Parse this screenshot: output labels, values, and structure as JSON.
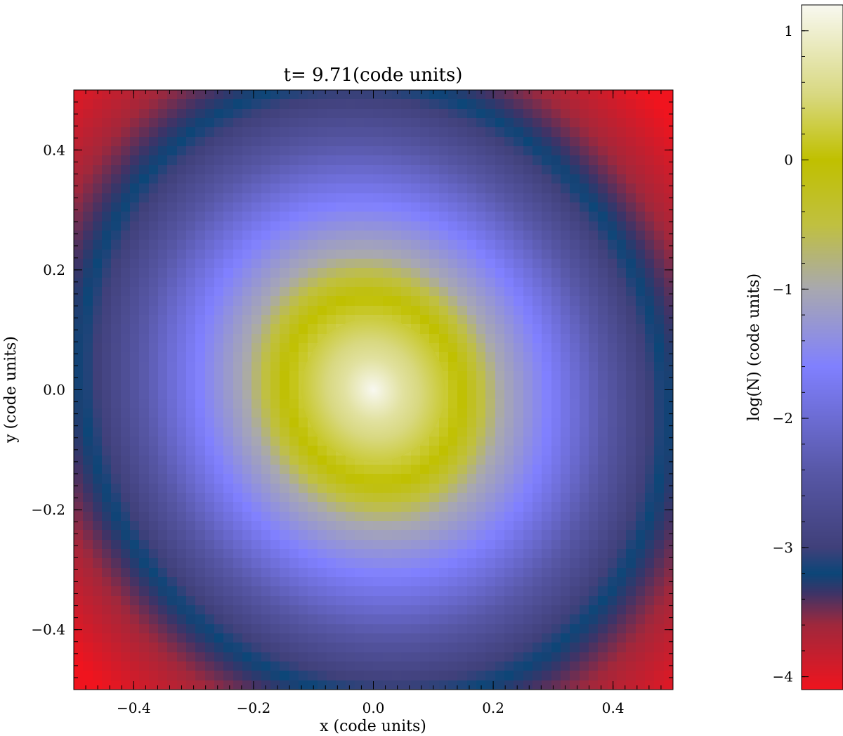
{
  "chart_data": [
    {
      "type": "heatmap",
      "title": "t=  9.71(code units)",
      "xlabel": "x (code units)",
      "ylabel": "y (code units)",
      "xlim": [
        -0.5,
        0.5
      ],
      "ylim": [
        -0.5,
        0.5
      ],
      "xticks": [
        -0.4,
        -0.2,
        0.0,
        0.2,
        0.4
      ],
      "xtick_labels": [
        "−0.4",
        "−0.2",
        "0.0",
        "0.2",
        "0.4"
      ],
      "yticks": [
        -0.4,
        -0.2,
        0.0,
        0.2,
        0.4
      ],
      "ytick_labels": [
        "−0.4",
        "−0.2",
        "0.0",
        "0.2",
        "0.4"
      ],
      "grid": false,
      "field": "log(N)",
      "value_range": [
        -4.1,
        1.2
      ],
      "profile": {
        "description": "radially decreasing log column density centred at origin",
        "center_value": 1.2,
        "radius_value_pairs": [
          [
            0.0,
            1.2
          ],
          [
            0.05,
            0.7
          ],
          [
            0.15,
            0.0
          ],
          [
            0.22,
            -1.0
          ],
          [
            0.3,
            -1.6
          ],
          [
            0.42,
            -2.6
          ],
          [
            0.5,
            -3.2
          ],
          [
            0.6,
            -3.7
          ],
          [
            0.7,
            -4.1
          ]
        ]
      },
      "grid_cells": 64
    },
    {
      "type": "colorbar",
      "label": "log(N) (code units)",
      "range": [
        -4.1,
        1.2
      ],
      "ticks": [
        1,
        0,
        -1,
        -2,
        -3,
        -4
      ],
      "tick_labels": [
        "1",
        "0",
        "−1",
        "−2",
        "−3",
        "−4"
      ],
      "colormap_stops": [
        {
          "value": -4.1,
          "color": "#f0141e"
        },
        {
          "value": -3.6,
          "color": "#a0283c"
        },
        {
          "value": -3.35,
          "color": "#3c3468"
        },
        {
          "value": -3.2,
          "color": "#0c4678"
        },
        {
          "value": -3.0,
          "color": "#40407a"
        },
        {
          "value": -2.4,
          "color": "#5858a8"
        },
        {
          "value": -1.6,
          "color": "#8080ff"
        },
        {
          "value": -1.0,
          "color": "#a8a8b0"
        },
        {
          "value": -0.5,
          "color": "#c0c040"
        },
        {
          "value": 0.0,
          "color": "#c0c000"
        },
        {
          "value": 0.5,
          "color": "#d8d880"
        },
        {
          "value": 1.2,
          "color": "#f8f8f0"
        }
      ]
    }
  ]
}
